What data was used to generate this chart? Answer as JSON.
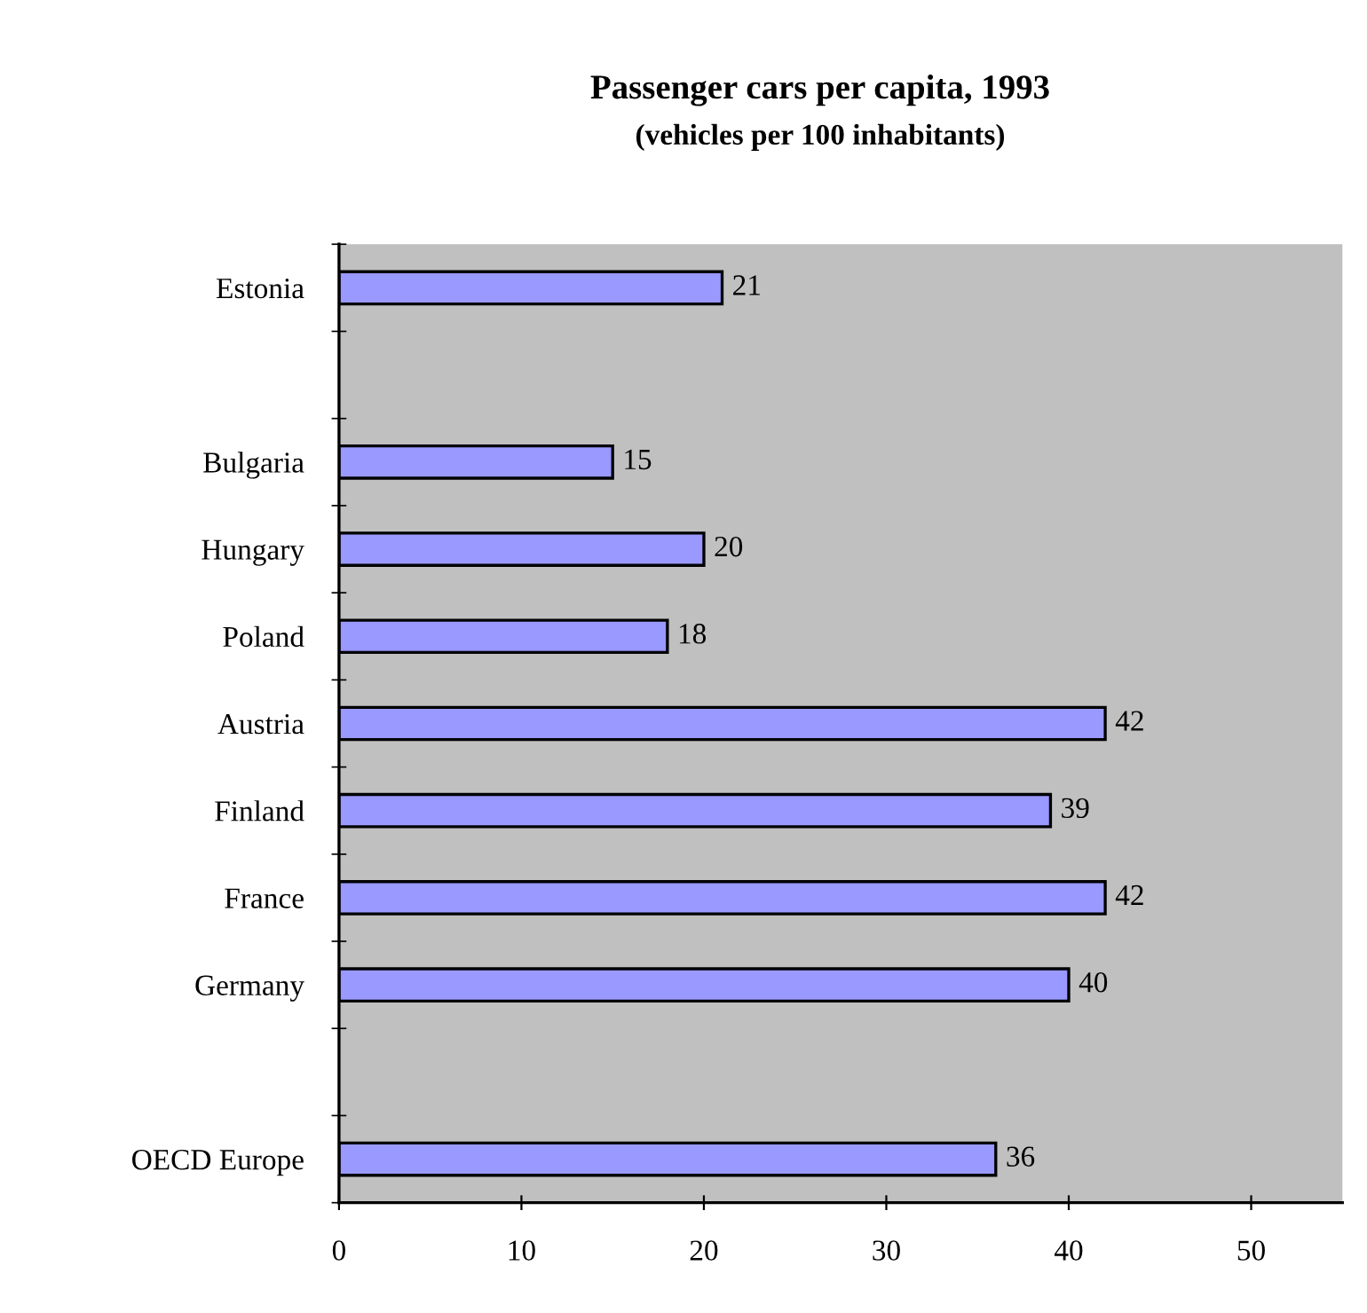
{
  "chart_data": {
    "type": "bar",
    "orientation": "horizontal",
    "title": "Passenger cars per capita, 1993",
    "subtitle": "(vehicles per 100 inhabitants)",
    "categories": [
      "Estonia",
      null,
      "Bulgaria",
      "Hungary",
      "Poland",
      "Austria",
      "Finland",
      "France",
      "Germany",
      null,
      "OECD Europe"
    ],
    "values": [
      21,
      null,
      15,
      20,
      18,
      42,
      39,
      42,
      40,
      null,
      36
    ],
    "color": "#9999ff",
    "xlim": [
      0,
      55
    ],
    "xticks": [
      0,
      10,
      20,
      30,
      40,
      50
    ],
    "grid": false,
    "data_labels": true
  }
}
